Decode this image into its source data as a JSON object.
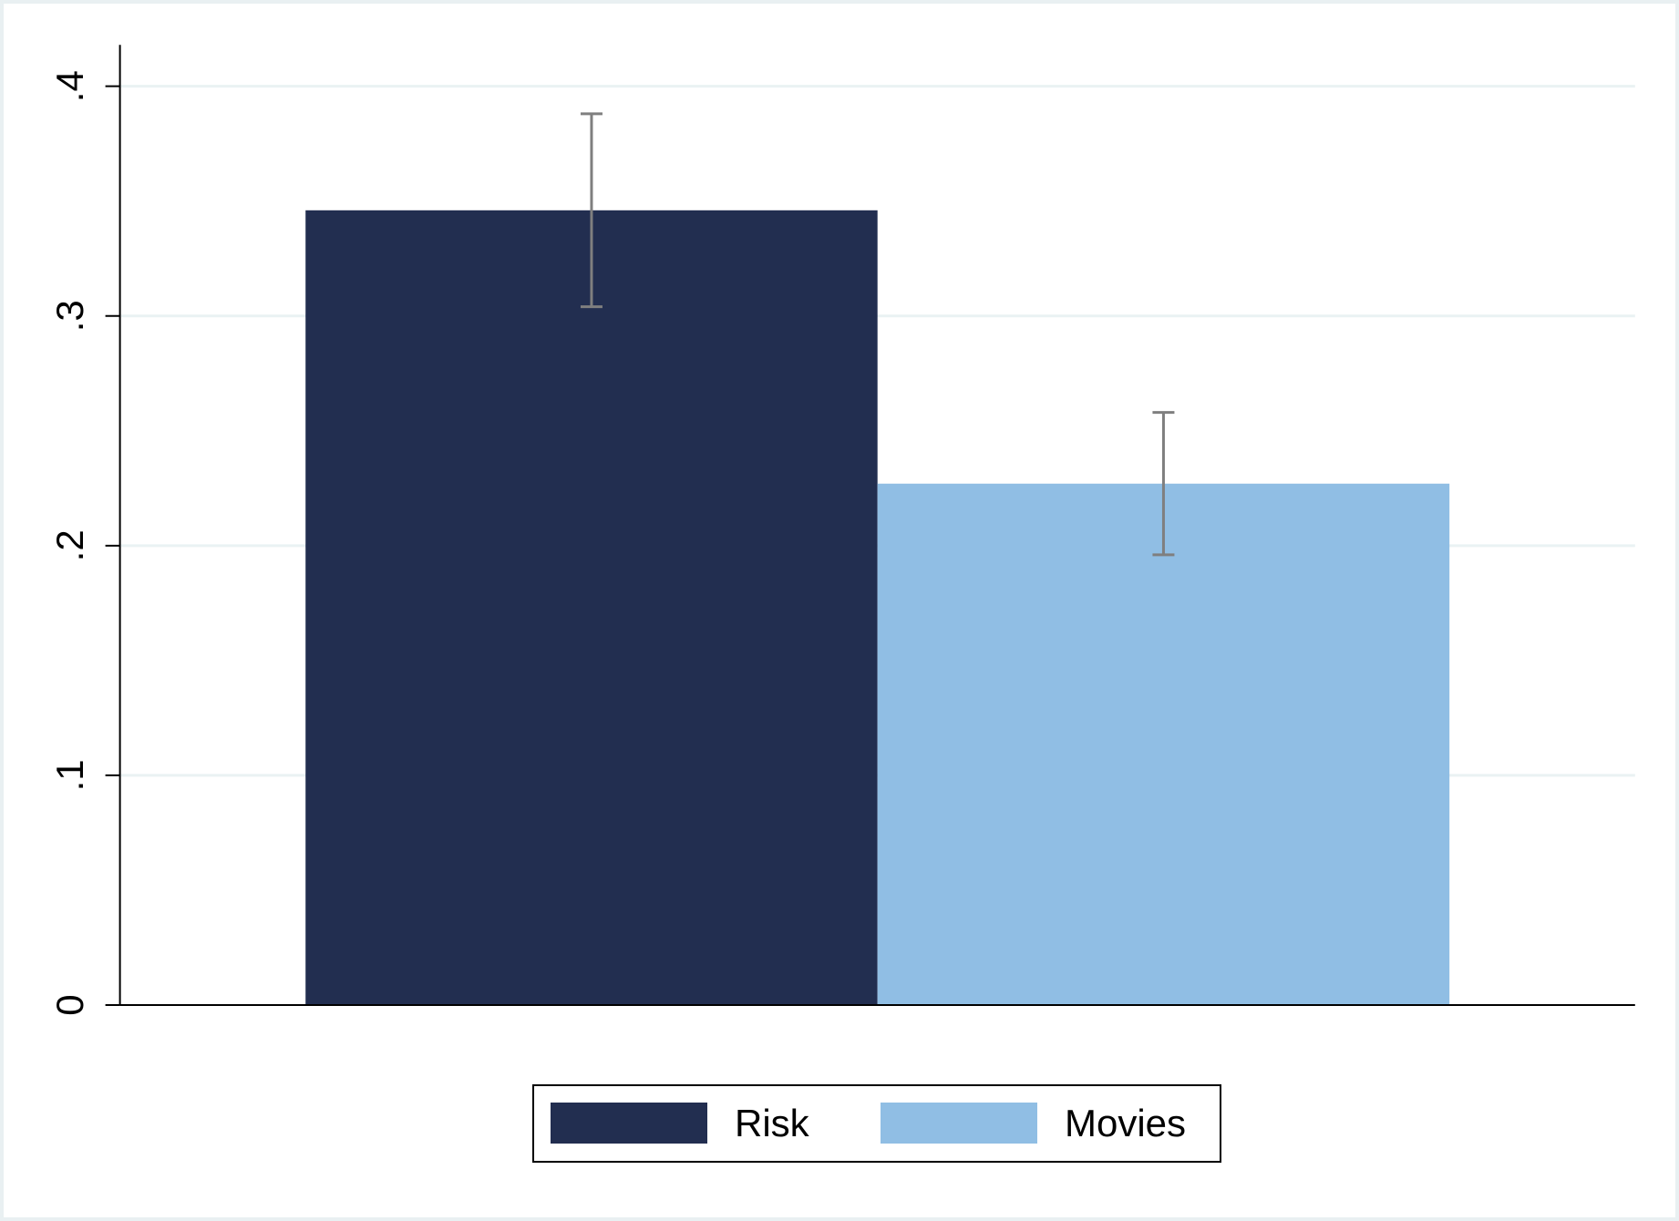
{
  "chart_data": {
    "type": "bar",
    "series": [
      {
        "name": "Risk",
        "color": "#222e50",
        "values": [
          0.346
        ],
        "errors": [
          0.042
        ]
      },
      {
        "name": "Movies",
        "color": "#90bee4",
        "values": [
          0.227
        ],
        "errors": [
          0.031
        ]
      }
    ],
    "ylim": [
      0,
      0.418
    ],
    "yticks": [
      0,
      {
        "value": 0.1,
        "label": ".1"
      },
      {
        "value": 0.2,
        "label": ".2"
      },
      {
        "value": 0.3,
        "label": ".3"
      },
      {
        "value": 0.4,
        "label": ".4"
      }
    ],
    "grid": true,
    "legend": "bottom",
    "error_color": "#7f7f7f"
  }
}
